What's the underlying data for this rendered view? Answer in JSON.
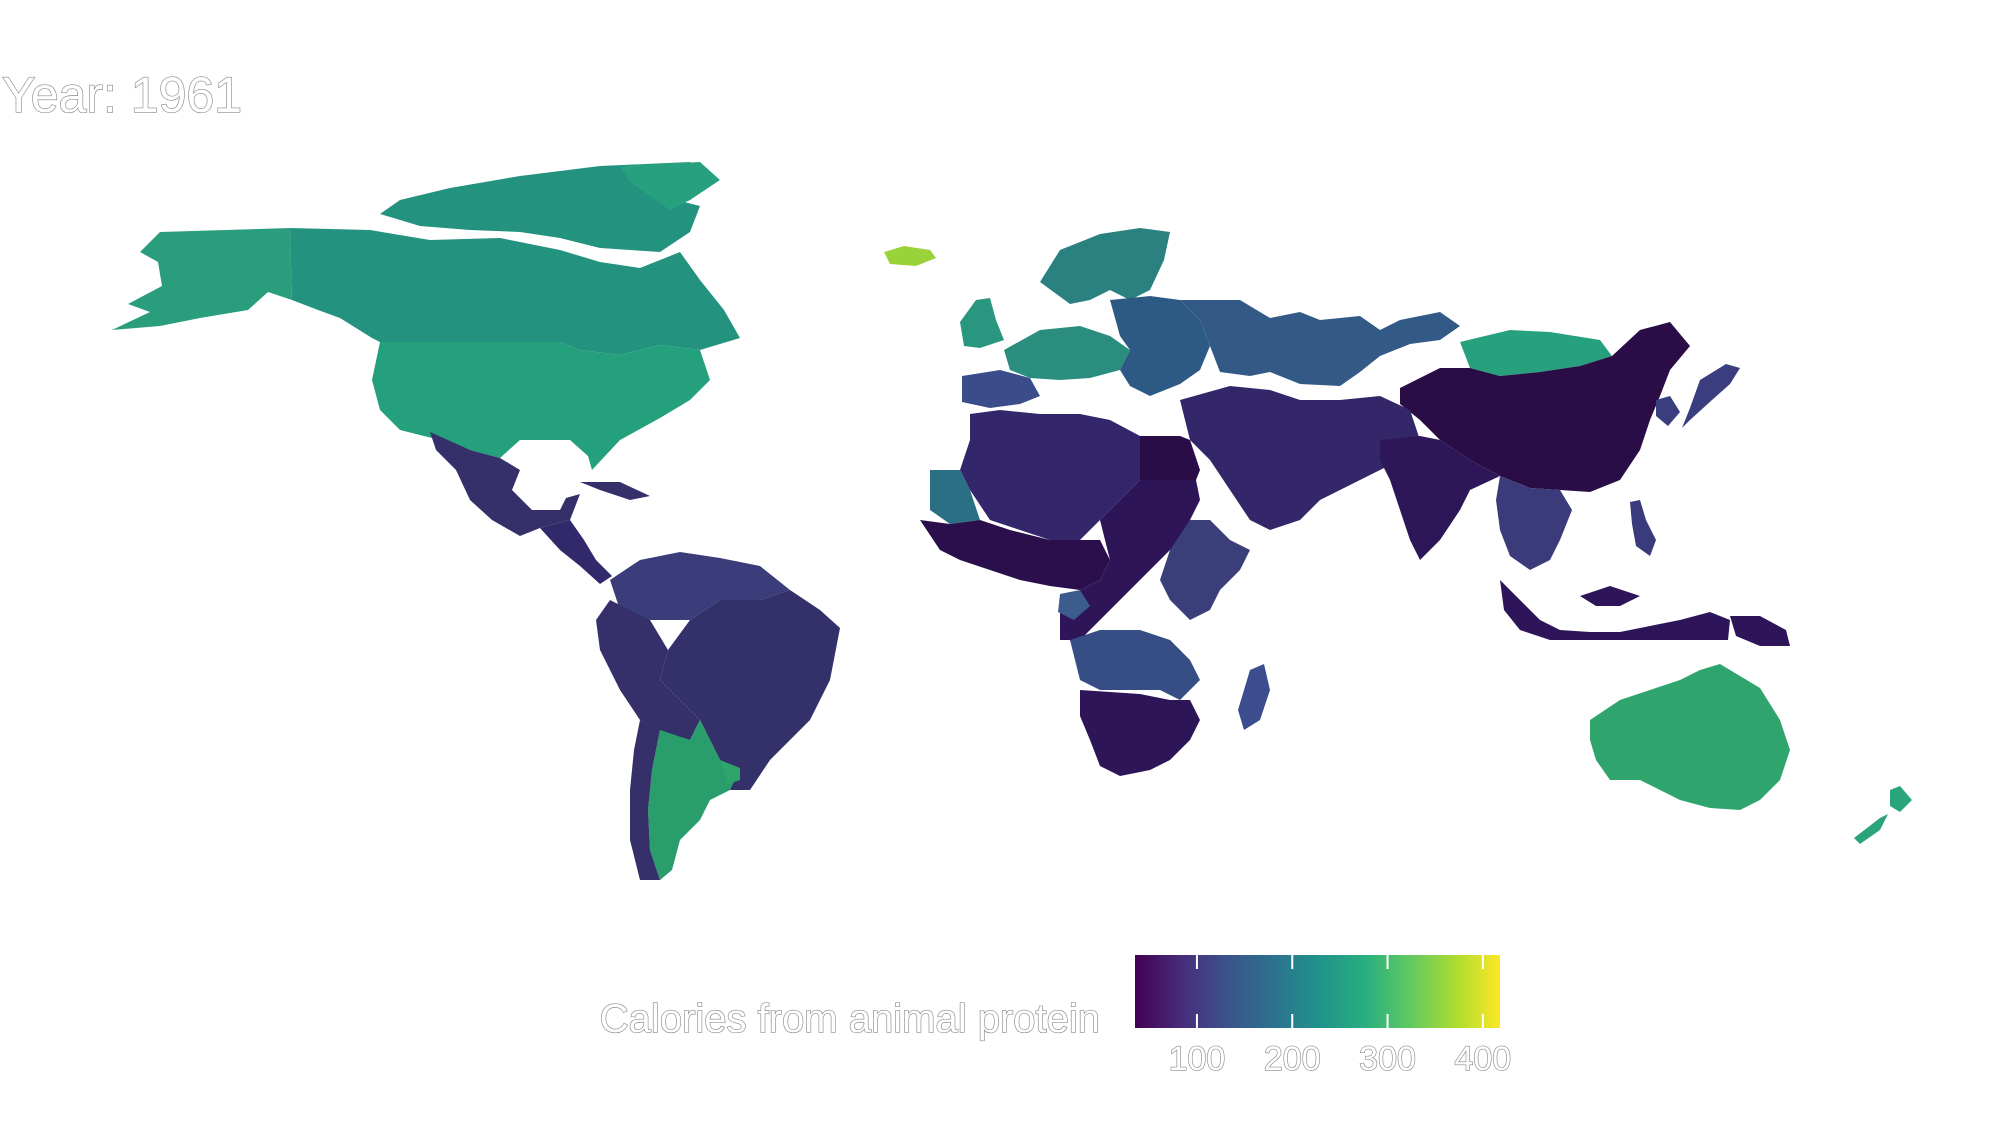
{
  "map": {
    "title": "Year: 1961",
    "color_scale": "viridis",
    "colors": {
      "low": "#440154",
      "mid_low": "#3b528b",
      "mid": "#21918c",
      "mid_high": "#5ec962",
      "high": "#fde725",
      "background": "#ffffff"
    },
    "regions": [
      {
        "name": "Alaska",
        "color": "#2a9d7c"
      },
      {
        "name": "Canada",
        "color": "#23937f"
      },
      {
        "name": "Canadian Arctic",
        "color": "#23937f"
      },
      {
        "name": "Greenland",
        "color": "#27a07f"
      },
      {
        "name": "United States",
        "color": "#25a07c"
      },
      {
        "name": "Mexico",
        "color": "#35306a"
      },
      {
        "name": "Central America",
        "color": "#31296a"
      },
      {
        "name": "Cuba",
        "color": "#352f6a"
      },
      {
        "name": "Colombia / Venezuela",
        "color": "#3a3d7a"
      },
      {
        "name": "Brazil",
        "color": "#34306a"
      },
      {
        "name": "Peru / Bolivia",
        "color": "#35306a"
      },
      {
        "name": "Argentina",
        "color": "#2a9d6c"
      },
      {
        "name": "Uruguay",
        "color": "#2ea56a"
      },
      {
        "name": "Chile",
        "color": "#35306a"
      },
      {
        "name": "Iceland",
        "color": "#9ad23a"
      },
      {
        "name": "Scandinavia",
        "color": "#2a8180"
      },
      {
        "name": "United Kingdom",
        "color": "#29977f"
      },
      {
        "name": "Western Europe",
        "color": "#2a8d7e"
      },
      {
        "name": "Eastern Europe",
        "color": "#2d5a84"
      },
      {
        "name": "Iberia",
        "color": "#3a4d8a"
      },
      {
        "name": "USSR",
        "color": "#335a86"
      },
      {
        "name": "Mongolia",
        "color": "#27a07d"
      },
      {
        "name": "China",
        "color": "#2a0c46"
      },
      {
        "name": "Korea / Japan",
        "color": "#3a3d7e"
      },
      {
        "name": "Middle East",
        "color": "#33276a"
      },
      {
        "name": "Egypt",
        "color": "#2a0c46"
      },
      {
        "name": "India",
        "color": "#2e1758"
      },
      {
        "name": "Southeast Asia",
        "color": "#3b3a7a"
      },
      {
        "name": "Indonesia",
        "color": "#2e1458"
      },
      {
        "name": "Philippines",
        "color": "#3a3b7c"
      },
      {
        "name": "North Africa",
        "color": "#33266a"
      },
      {
        "name": "Mauritania",
        "color": "#2a6f84"
      },
      {
        "name": "West Africa",
        "color": "#2b0f4c"
      },
      {
        "name": "Central Africa",
        "color": "#2e1558"
      },
      {
        "name": "Gabon",
        "color": "#3b5c8c"
      },
      {
        "name": "East Africa",
        "color": "#3a3f7a"
      },
      {
        "name": "Southern Africa",
        "color": "#364d86"
      },
      {
        "name": "Angola / Zambia",
        "color": "#2e1558"
      },
      {
        "name": "Madagascar",
        "color": "#3b4d8c"
      },
      {
        "name": "Australia",
        "color": "#2fa46c"
      },
      {
        "name": "New Zealand",
        "color": "#2aa57a"
      },
      {
        "name": "Papua New Guinea",
        "color": "#2e1458"
      }
    ]
  },
  "legend": {
    "title": "Calories from animal protein",
    "ticks": [
      "100",
      "200",
      "300",
      "400"
    ],
    "tick_values": [
      100,
      200,
      300,
      400
    ],
    "range": [
      35,
      418
    ]
  }
}
